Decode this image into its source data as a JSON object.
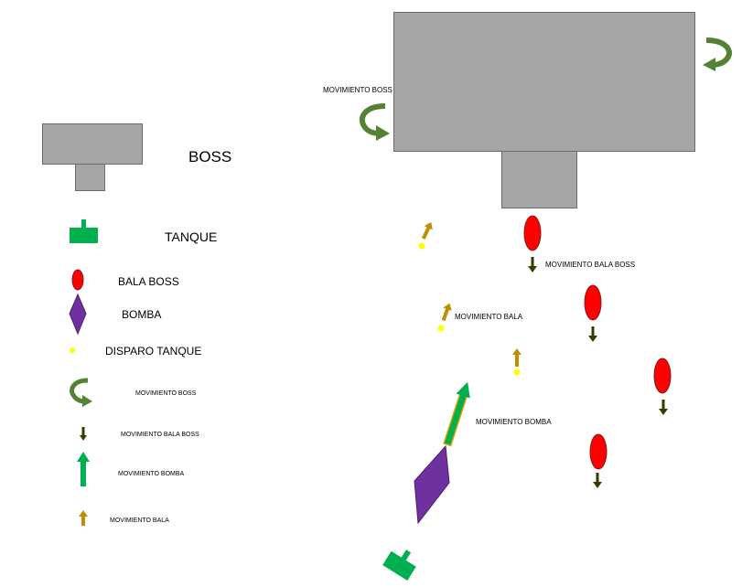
{
  "legend": {
    "boss": "BOSS",
    "tanque": "TANQUE",
    "bala_boss": "BALA BOSS",
    "bomba": "BOMBA",
    "disparo_tanque": "DISPARO TANQUE",
    "movimiento_boss": "MOVIMIENTO BOSS",
    "movimiento_bala_boss": "MOVIMIENTO BALA BOSS",
    "movimiento_bomba": "MOVIMIENTO BOMBA",
    "movimiento_bala": "MOVIMIENTO BALA"
  },
  "scene": {
    "movimiento_boss": "MOVIMIENTO BOSS",
    "movimiento_bala_boss": "MOVIMIENTO BALA BOSS",
    "movimiento_bala": "MOVIMIENTO BALA",
    "movimiento_bomba": "MOVIMIENTO BOMBA"
  },
  "colors": {
    "boss": "#a6a6a6",
    "tank": "#00b050",
    "boss_bullet": "#ff0000",
    "bomb": "#7030a0",
    "tank_shot": "#ffff00",
    "boss_rotation_arrow": "#548235",
    "bullet_arrow": "#bf8f00",
    "bomb_arrow": "#00b050"
  },
  "icons": [
    "rotate-arrow-icon",
    "down-arrow-icon",
    "up-arrow-icon"
  ]
}
